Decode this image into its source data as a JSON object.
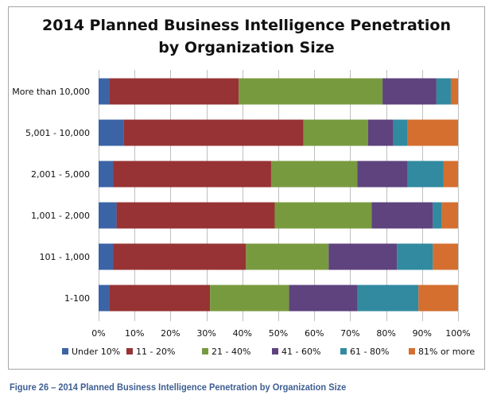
{
  "caption": "Figure 26 – 2014 Planned Business Intelligence Penetration by Organization Size",
  "chart_data": {
    "type": "bar",
    "orientation": "horizontal",
    "stacked": "100%",
    "title": "2014 Planned Business Intelligence Penetration\nby Organization Size",
    "xlabel": "",
    "ylabel": "",
    "xlim": [
      0,
      100
    ],
    "x_ticks": [
      "0%",
      "10%",
      "20%",
      "30%",
      "40%",
      "50%",
      "60%",
      "70%",
      "80%",
      "90%",
      "100%"
    ],
    "grid": "vertical",
    "legend_position": "bottom",
    "categories": [
      "More than 10,000",
      "5,001 - 10,000",
      "2,001 - 5,000",
      "1,001 - 2,000",
      "101 - 1,000",
      "1-100"
    ],
    "series": [
      {
        "name": "Under 10%",
        "color": "#3b64a6",
        "values": [
          3,
          7,
          4,
          5,
          4,
          3
        ]
      },
      {
        "name": "11 - 20%",
        "color": "#973334",
        "values": [
          36,
          50,
          44,
          44,
          37,
          28
        ]
      },
      {
        "name": "21 - 40%",
        "color": "#789a3f",
        "values": [
          40,
          18,
          24,
          27,
          23,
          22
        ]
      },
      {
        "name": "41 - 60%",
        "color": "#5e437e",
        "values": [
          15,
          7,
          14,
          17,
          19,
          19
        ]
      },
      {
        "name": "61 - 80%",
        "color": "#318aa0",
        "values": [
          4,
          4,
          10,
          2.5,
          10,
          17
        ]
      },
      {
        "name": "81% or more",
        "color": "#d46f2f",
        "values": [
          2,
          14,
          4,
          4.5,
          7,
          11
        ]
      }
    ]
  }
}
